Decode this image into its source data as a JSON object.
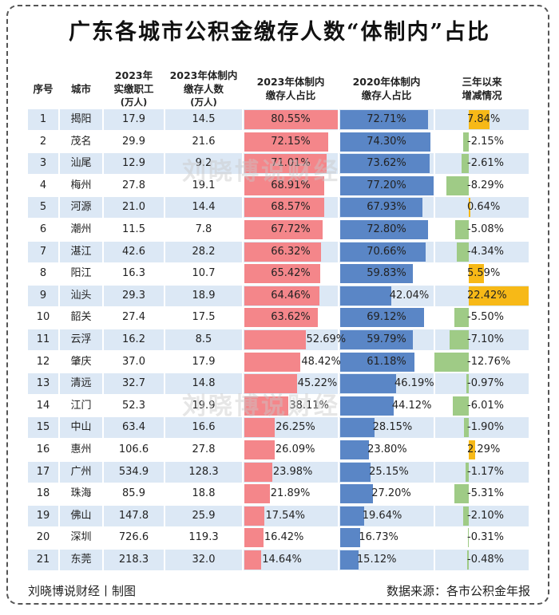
{
  "title": "广东各城市公积金缴存人数“体制内”占比",
  "headers": {
    "no": "序号",
    "city": "城市",
    "workers": [
      "2023年",
      "实缴职工",
      "(万人)"
    ],
    "gov": [
      "2023年体制内",
      "缴存人数",
      "(万人)"
    ],
    "share2023": [
      "2023年体制内",
      "缴存人占比"
    ],
    "share2020": [
      "2020年体制内",
      "缴存人占比"
    ],
    "change": [
      "三年以来",
      "增减情况"
    ]
  },
  "colors": {
    "share2023": "#f4868a",
    "share2020": "#5a86c6",
    "increase": "#f7b917",
    "decrease": "#9fcb86",
    "stripe": "#dce8f5"
  },
  "watermark": "刘晓博说财经",
  "footer": {
    "left": "刘晓博说财经丨制图",
    "right": "数据来源：各市公积金年报"
  },
  "chart_data": {
    "type": "table",
    "title": "广东各城市公积金缴存人数“体制内”占比",
    "columns": [
      "序号",
      "城市",
      "2023年实缴职工(万人)",
      "2023年体制内缴存人数(万人)",
      "2023年体制内缴存人占比",
      "2020年体制内缴存人占比",
      "三年以来增减情况"
    ],
    "rows": [
      {
        "no": "1",
        "city": "揭阳",
        "workers": "17.9",
        "gov": "14.5",
        "s23": "80.55%",
        "s20": "72.71%",
        "chg": "7.84%",
        "v23": 80.55,
        "v20": 72.71,
        "vc": 7.84
      },
      {
        "no": "2",
        "city": "茂名",
        "workers": "29.9",
        "gov": "21.6",
        "s23": "72.15%",
        "s20": "74.30%",
        "chg": "-2.15%",
        "v23": 72.15,
        "v20": 74.3,
        "vc": -2.15
      },
      {
        "no": "3",
        "city": "汕尾",
        "workers": "12.9",
        "gov": "9.2",
        "s23": "71.01%",
        "s20": "73.62%",
        "chg": "-2.61%",
        "v23": 71.01,
        "v20": 73.62,
        "vc": -2.61
      },
      {
        "no": "4",
        "city": "梅州",
        "workers": "27.8",
        "gov": "19.1",
        "s23": "68.91%",
        "s20": "77.20%",
        "chg": "-8.29%",
        "v23": 68.91,
        "v20": 77.2,
        "vc": -8.29
      },
      {
        "no": "5",
        "city": "河源",
        "workers": "21.0",
        "gov": "14.4",
        "s23": "68.57%",
        "s20": "67.93%",
        "chg": "0.64%",
        "v23": 68.57,
        "v20": 67.93,
        "vc": 0.64
      },
      {
        "no": "6",
        "city": "潮州",
        "workers": "11.5",
        "gov": "7.8",
        "s23": "67.72%",
        "s20": "72.80%",
        "chg": "-5.08%",
        "v23": 67.72,
        "v20": 72.8,
        "vc": -5.08
      },
      {
        "no": "7",
        "city": "湛江",
        "workers": "42.6",
        "gov": "28.2",
        "s23": "66.32%",
        "s20": "70.66%",
        "chg": "-4.34%",
        "v23": 66.32,
        "v20": 70.66,
        "vc": -4.34
      },
      {
        "no": "8",
        "city": "阳江",
        "workers": "16.3",
        "gov": "10.7",
        "s23": "65.42%",
        "s20": "59.83%",
        "chg": "5.59%",
        "v23": 65.42,
        "v20": 59.83,
        "vc": 5.59
      },
      {
        "no": "9",
        "city": "汕头",
        "workers": "29.3",
        "gov": "18.9",
        "s23": "64.46%",
        "s20": "42.04%",
        "chg": "22.42%",
        "v23": 64.46,
        "v20": 42.04,
        "vc": 22.42
      },
      {
        "no": "10",
        "city": "韶关",
        "workers": "27.4",
        "gov": "17.5",
        "s23": "63.62%",
        "s20": "69.12%",
        "chg": "-5.50%",
        "v23": 63.62,
        "v20": 69.12,
        "vc": -5.5
      },
      {
        "no": "11",
        "city": "云浮",
        "workers": "16.2",
        "gov": "8.5",
        "s23": "52.69%",
        "s20": "59.79%",
        "chg": "-7.10%",
        "v23": 52.69,
        "v20": 59.79,
        "vc": -7.1
      },
      {
        "no": "12",
        "city": "肇庆",
        "workers": "37.0",
        "gov": "17.9",
        "s23": "48.42%",
        "s20": "61.18%",
        "chg": "-12.76%",
        "v23": 48.42,
        "v20": 61.18,
        "vc": -12.76
      },
      {
        "no": "13",
        "city": "清远",
        "workers": "32.7",
        "gov": "14.8",
        "s23": "45.22%",
        "s20": "46.19%",
        "chg": "-0.97%",
        "v23": 45.22,
        "v20": 46.19,
        "vc": -0.97
      },
      {
        "no": "14",
        "city": "江门",
        "workers": "52.3",
        "gov": "19.9",
        "s23": "38.11%",
        "s20": "44.12%",
        "chg": "-6.01%",
        "v23": 38.11,
        "v20": 44.12,
        "vc": -6.01
      },
      {
        "no": "15",
        "city": "中山",
        "workers": "63.4",
        "gov": "16.6",
        "s23": "26.25%",
        "s20": "28.15%",
        "chg": "-1.90%",
        "v23": 26.25,
        "v20": 28.15,
        "vc": -1.9
      },
      {
        "no": "16",
        "city": "惠州",
        "workers": "106.6",
        "gov": "27.8",
        "s23": "26.09%",
        "s20": "23.80%",
        "chg": "2.29%",
        "v23": 26.09,
        "v20": 23.8,
        "vc": 2.29
      },
      {
        "no": "17",
        "city": "广州",
        "workers": "534.9",
        "gov": "128.3",
        "s23": "23.98%",
        "s20": "25.15%",
        "chg": "-1.17%",
        "v23": 23.98,
        "v20": 25.15,
        "vc": -1.17
      },
      {
        "no": "18",
        "city": "珠海",
        "workers": "85.9",
        "gov": "18.8",
        "s23": "21.89%",
        "s20": "27.20%",
        "chg": "-5.31%",
        "v23": 21.89,
        "v20": 27.2,
        "vc": -5.31
      },
      {
        "no": "19",
        "city": "佛山",
        "workers": "147.8",
        "gov": "25.9",
        "s23": "17.54%",
        "s20": "19.64%",
        "chg": "-2.10%",
        "v23": 17.54,
        "v20": 19.64,
        "vc": -2.1
      },
      {
        "no": "20",
        "city": "深圳",
        "workers": "726.6",
        "gov": "119.3",
        "s23": "16.42%",
        "s20": "16.73%",
        "chg": "-0.31%",
        "v23": 16.42,
        "v20": 16.73,
        "vc": -0.31
      },
      {
        "no": "21",
        "city": "东莞",
        "workers": "218.3",
        "gov": "32.0",
        "s23": "14.64%",
        "s20": "15.12%",
        "chg": "-0.48%",
        "v23": 14.64,
        "v20": 15.12,
        "vc": -0.48
      }
    ]
  }
}
